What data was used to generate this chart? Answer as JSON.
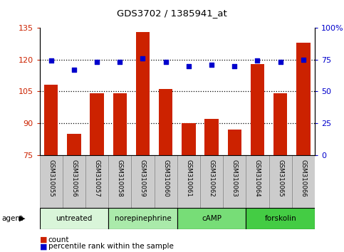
{
  "title": "GDS3702 / 1385941_at",
  "samples": [
    "GSM310055",
    "GSM310056",
    "GSM310057",
    "GSM310058",
    "GSM310059",
    "GSM310060",
    "GSM310061",
    "GSM310062",
    "GSM310063",
    "GSM310064",
    "GSM310065",
    "GSM310066"
  ],
  "counts": [
    108,
    85,
    104,
    104,
    133,
    106,
    90,
    92,
    87,
    118,
    104,
    128
  ],
  "percentiles": [
    74,
    67,
    73,
    73,
    76,
    73,
    70,
    71,
    70,
    74,
    73,
    75
  ],
  "agent_groups": [
    {
      "label": "untreated",
      "start": 0,
      "end": 3,
      "color": "#d9f5d9"
    },
    {
      "label": "norepinephrine",
      "start": 3,
      "end": 6,
      "color": "#aaeaaa"
    },
    {
      "label": "cAMP",
      "start": 6,
      "end": 9,
      "color": "#77dd77"
    },
    {
      "label": "forskolin",
      "start": 9,
      "end": 12,
      "color": "#44cc44"
    }
  ],
  "ylim_left": [
    75,
    135
  ],
  "ylim_right": [
    0,
    100
  ],
  "yticks_left": [
    75,
    90,
    105,
    120,
    135
  ],
  "yticks_right": [
    0,
    25,
    50,
    75,
    100
  ],
  "bar_color": "#cc2200",
  "dot_color": "#0000cc",
  "bg_color": "#ffffff",
  "sample_cell_color": "#cccccc",
  "legend_count_color": "#cc2200",
  "legend_pct_color": "#0000cc"
}
